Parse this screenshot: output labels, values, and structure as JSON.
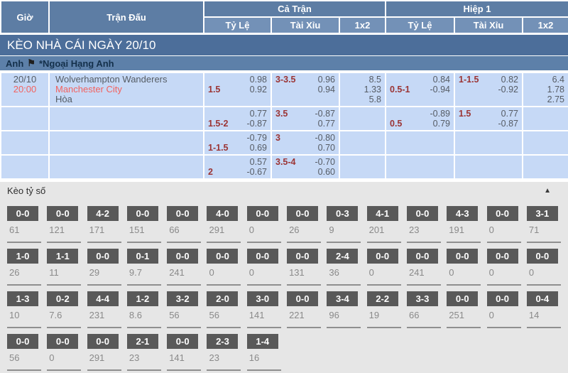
{
  "header": {
    "col_time": "Giờ",
    "col_match": "Trận Đấu",
    "group_full": "Cả Trận",
    "group_half": "Hiệp 1",
    "sub_odds": "Tỷ Lệ",
    "sub_ou": "Tài Xỉu",
    "sub_1x2": "1x2",
    "sub_odds_h1": "Tỷ Lệ",
    "sub_ou_h1": "Tài Xỉu",
    "sub_1x2_h1": "1x2"
  },
  "banner": {
    "title": "KÈO NHÀ CÁI NGÀY 20/10"
  },
  "league": {
    "country": "Anh",
    "flag_icon": "⚑",
    "name": "*Ngoại Hạng Anh"
  },
  "match": {
    "date": "20/10",
    "time": "20:00",
    "home": "Wolverhampton Wanderers",
    "away": "Manchester City",
    "draw": "Hòa"
  },
  "odds_rows": [
    {
      "ft_hdp": {
        "hcp": "1.5",
        "l1": "0.98",
        "l2": "0.92"
      },
      "ft_ou": {
        "hcp": "3-3.5",
        "l1": "0.96",
        "l2": "0.94"
      },
      "ft_1x2": [
        "8.5",
        "1.33",
        "5.8"
      ],
      "h1_hdp": {
        "hcp": "0.5-1",
        "l1": "0.84",
        "l2": "-0.94"
      },
      "h1_ou": {
        "hcp": "1-1.5",
        "l1": "0.82",
        "l2": "-0.92"
      },
      "h1_1x2": [
        "6.4",
        "1.78",
        "2.75"
      ]
    },
    {
      "ft_hdp": {
        "hcp": "1.5-2",
        "l1": "0.77",
        "l2": "-0.87"
      },
      "ft_ou": {
        "hcp": "3.5",
        "l1": "-0.87",
        "l2": "0.77"
      },
      "ft_1x2": [],
      "h1_hdp": {
        "hcp": "0.5",
        "l1": "-0.89",
        "l2": "0.79"
      },
      "h1_ou": {
        "hcp": "1.5",
        "l1": "0.77",
        "l2": "-0.87"
      },
      "h1_1x2": []
    },
    {
      "ft_hdp": {
        "hcp": "1-1.5",
        "l1": "-0.79",
        "l2": "0.69"
      },
      "ft_ou": {
        "hcp": "3",
        "l1": "-0.80",
        "l2": "0.70"
      },
      "ft_1x2": [],
      "h1_hdp": {
        "hcp": "",
        "l1": "",
        "l2": ""
      },
      "h1_ou": {
        "hcp": "",
        "l1": "",
        "l2": ""
      },
      "h1_1x2": []
    },
    {
      "ft_hdp": {
        "hcp": "2",
        "l1": "0.57",
        "l2": "-0.67"
      },
      "ft_ou": {
        "hcp": "3.5-4",
        "l1": "-0.70",
        "l2": "0.60"
      },
      "ft_1x2": [],
      "h1_hdp": {
        "hcp": "",
        "l1": "",
        "l2": ""
      },
      "h1_ou": {
        "hcp": "",
        "l1": "",
        "l2": ""
      },
      "h1_1x2": []
    }
  ],
  "score_grid": {
    "title": "Kèo tỷ số",
    "collapse_icon": "▲",
    "rows": [
      [
        {
          "score": "0-0",
          "count": "61"
        },
        {
          "score": "0-0",
          "count": "121"
        },
        {
          "score": "4-2",
          "count": "171"
        },
        {
          "score": "0-0",
          "count": "151"
        },
        {
          "score": "0-0",
          "count": "66"
        },
        {
          "score": "4-0",
          "count": "291"
        },
        {
          "score": "0-0",
          "count": "0"
        },
        {
          "score": "0-0",
          "count": "26"
        },
        {
          "score": "0-3",
          "count": "9"
        },
        {
          "score": "4-1",
          "count": "201"
        },
        {
          "score": "0-0",
          "count": "23"
        },
        {
          "score": "4-3",
          "count": "191"
        },
        {
          "score": "0-0",
          "count": "0"
        },
        {
          "score": "3-1",
          "count": "71"
        }
      ],
      [
        {
          "score": "1-0",
          "count": "26"
        },
        {
          "score": "1-1",
          "count": "11"
        },
        {
          "score": "0-0",
          "count": "29"
        },
        {
          "score": "0-1",
          "count": "9.7"
        },
        {
          "score": "0-0",
          "count": "241"
        },
        {
          "score": "0-0",
          "count": "0"
        },
        {
          "score": "0-0",
          "count": "0"
        },
        {
          "score": "0-0",
          "count": "131"
        },
        {
          "score": "2-4",
          "count": "36"
        },
        {
          "score": "0-0",
          "count": "0"
        },
        {
          "score": "0-0",
          "count": "241"
        },
        {
          "score": "0-0",
          "count": "0"
        },
        {
          "score": "0-0",
          "count": "0"
        },
        {
          "score": "0-0",
          "count": "0"
        }
      ],
      [
        {
          "score": "1-3",
          "count": "10"
        },
        {
          "score": "0-2",
          "count": "7.6"
        },
        {
          "score": "4-4",
          "count": "231"
        },
        {
          "score": "1-2",
          "count": "8.6"
        },
        {
          "score": "3-2",
          "count": "56"
        },
        {
          "score": "2-0",
          "count": "56"
        },
        {
          "score": "3-0",
          "count": "141"
        },
        {
          "score": "0-0",
          "count": "221"
        },
        {
          "score": "3-4",
          "count": "96"
        },
        {
          "score": "2-2",
          "count": "19"
        },
        {
          "score": "3-3",
          "count": "66"
        },
        {
          "score": "0-0",
          "count": "251"
        },
        {
          "score": "0-0",
          "count": "0"
        },
        {
          "score": "0-4",
          "count": "14"
        }
      ],
      [
        {
          "score": "0-0",
          "count": "56"
        },
        {
          "score": "0-0",
          "count": "0"
        },
        {
          "score": "0-0",
          "count": "291"
        },
        {
          "score": "2-1",
          "count": "23"
        },
        {
          "score": "0-0",
          "count": "141"
        },
        {
          "score": "2-3",
          "count": "23"
        },
        {
          "score": "1-4",
          "count": "16"
        },
        null,
        null,
        null,
        null,
        null,
        null,
        null
      ]
    ]
  },
  "colors": {
    "header_blue": "#5d7da4",
    "subheader_blue": "#7391b7",
    "banner_blue": "#4c6e9a",
    "league_blue": "#5d80a9",
    "row_blue": "#c6d9f6",
    "accent_red": "#f2625f",
    "handicap_maroon": "#9b3434",
    "score_box_gray": "#595959"
  }
}
